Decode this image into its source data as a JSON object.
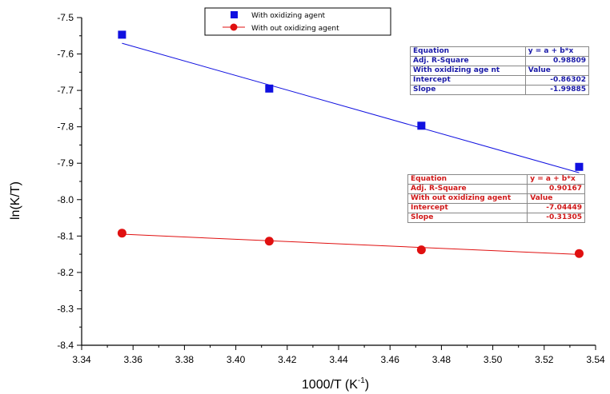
{
  "chart_data": {
    "type": "scatter",
    "xlabel": "1000/T (K",
    "xlabel_sup": "-1",
    "xlabel_close": ")",
    "ylabel": "ln(K/T)",
    "xlim": [
      3.34,
      3.54
    ],
    "ylim": [
      -8.4,
      -7.5
    ],
    "x_ticks": [
      "3.34",
      "3.36",
      "3.38",
      "3.40",
      "3.42",
      "3.44",
      "3.46",
      "3.48",
      "3.50",
      "3.52",
      "3.54"
    ],
    "y_ticks": [
      "-7.5",
      "-7.6",
      "-7.7",
      "-7.8",
      "-7.9",
      "-8.0",
      "-8.1",
      "-8.2",
      "-8.3",
      "-8.4"
    ],
    "grid": false,
    "legend_position": "top-center",
    "series": [
      {
        "name": "With oxidizing agent",
        "color": "#1010e0",
        "marker": "square",
        "x": [
          3.3557,
          3.413,
          3.4722,
          3.5336
        ],
        "y": [
          -7.547,
          -7.695,
          -7.797,
          -7.91
        ],
        "fit": {
          "intercept": -0.86302,
          "slope": -1.99885
        }
      },
      {
        "name": "With out oxidizing agent",
        "color": "#e01010",
        "marker": "circle",
        "x": [
          3.3557,
          3.413,
          3.4722,
          3.5336
        ],
        "y": [
          -8.092,
          -8.114,
          -8.138,
          -8.148
        ],
        "fit": {
          "intercept": -7.04449,
          "slope": -0.31305
        }
      }
    ],
    "tables": [
      {
        "rows": [
          [
            "Equation",
            "y = a + b*x"
          ],
          [
            "Adj. R-Square",
            "0.98809"
          ],
          [
            "With oxidizing age nt",
            "Value"
          ],
          [
            "Intercept",
            "-0.86302"
          ],
          [
            "Slope",
            "-1.99885"
          ]
        ]
      },
      {
        "rows": [
          [
            "Equation",
            "y = a + b*x"
          ],
          [
            "Adj. R-Square",
            "0.90167"
          ],
          [
            "With out oxidizing agent",
            "Value"
          ],
          [
            "Intercept",
            "-7.04449"
          ],
          [
            "Slope",
            "-0.31305"
          ]
        ]
      }
    ]
  }
}
